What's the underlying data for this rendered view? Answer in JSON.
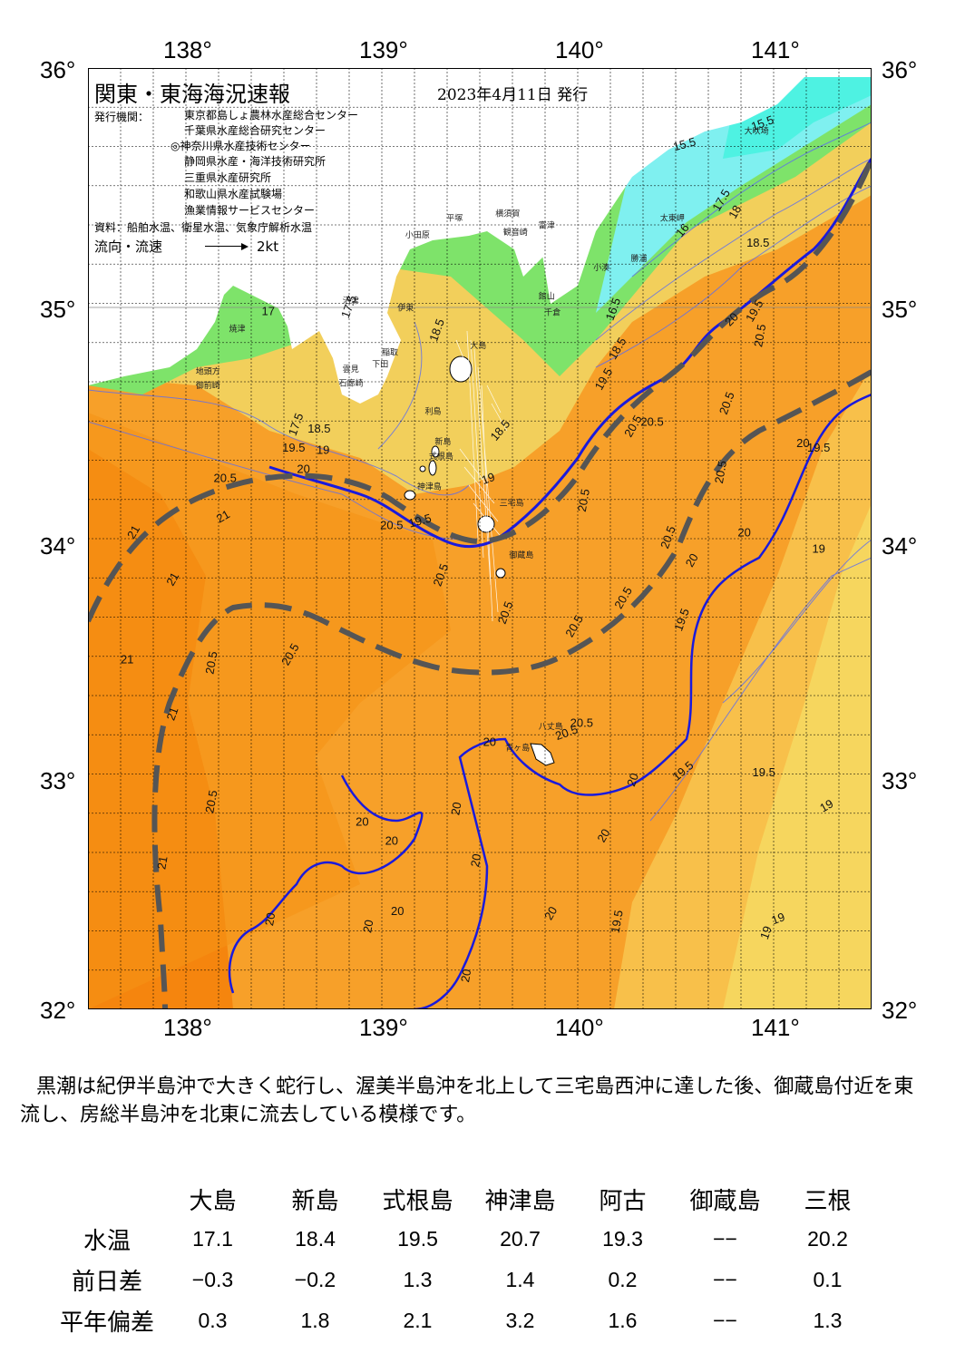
{
  "map": {
    "title": "関東・東海海況速報",
    "date": "2023年4月11日 発行",
    "publisher_label": "発行機関：",
    "publishers": [
      "東京都島しょ農林水産総合センター",
      "千葉県水産総合研究センター",
      "◎神奈川県水産技術センター",
      "静岡県水産・海洋技術研究所",
      "三重県水産研究所",
      "和歌山県水産試験場",
      "漁業情報サービスセンター"
    ],
    "source": "資料：船舶水温、衛星水温、気象庁解析水温",
    "flow_label": "流向・流速",
    "flow_scale": "2kt",
    "lon_labels": [
      "138°",
      "139°",
      "140°",
      "141°"
    ],
    "lat_labels": [
      "36°",
      "35°",
      "34°",
      "33°",
      "32°"
    ],
    "lon_range": [
      137.5,
      141.5
    ],
    "lat_range": [
      32,
      36
    ],
    "place_names": [
      {
        "name": "大吠埼",
        "lon": 140.85,
        "lat": 35.72
      },
      {
        "name": "太東岬",
        "lon": 140.42,
        "lat": 35.35
      },
      {
        "name": "勝浦",
        "lon": 140.27,
        "lat": 35.18
      },
      {
        "name": "小湊",
        "lon": 140.08,
        "lat": 35.14
      },
      {
        "name": "富津",
        "lon": 139.8,
        "lat": 35.32
      },
      {
        "name": "横須賀",
        "lon": 139.58,
        "lat": 35.37
      },
      {
        "name": "観音崎",
        "lon": 139.62,
        "lat": 35.29
      },
      {
        "name": "平塚",
        "lon": 139.33,
        "lat": 35.35
      },
      {
        "name": "小田原",
        "lon": 139.12,
        "lat": 35.28
      },
      {
        "name": "館山",
        "lon": 139.8,
        "lat": 35.02
      },
      {
        "name": "千倉",
        "lon": 139.83,
        "lat": 34.95
      },
      {
        "name": "伊東",
        "lon": 139.08,
        "lat": 34.97
      },
      {
        "name": "稲取",
        "lon": 139.0,
        "lat": 34.78
      },
      {
        "name": "下田",
        "lon": 138.95,
        "lat": 34.73
      },
      {
        "name": "雲見",
        "lon": 138.8,
        "lat": 34.71
      },
      {
        "name": "石廊崎",
        "lon": 138.78,
        "lat": 34.65
      },
      {
        "name": "沼津",
        "lon": 138.8,
        "lat": 35.0
      },
      {
        "name": "焼津",
        "lon": 138.22,
        "lat": 34.88
      },
      {
        "name": "地頭方",
        "lon": 138.05,
        "lat": 34.7
      },
      {
        "name": "御前崎",
        "lon": 138.05,
        "lat": 34.64
      },
      {
        "name": "利島",
        "lon": 139.22,
        "lat": 34.53
      },
      {
        "name": "新島",
        "lon": 139.27,
        "lat": 34.4
      },
      {
        "name": "式根島",
        "lon": 139.24,
        "lat": 34.34
      },
      {
        "name": "神津島",
        "lon": 139.18,
        "lat": 34.21
      },
      {
        "name": "三宅島",
        "lon": 139.6,
        "lat": 34.14
      },
      {
        "name": "御蔵島",
        "lon": 139.65,
        "lat": 33.92
      },
      {
        "name": "八丈島",
        "lon": 139.8,
        "lat": 33.19
      },
      {
        "name": "青ヶ島",
        "lon": 139.63,
        "lat": 33.1
      },
      {
        "name": "大島",
        "lon": 139.45,
        "lat": 34.81
      }
    ],
    "contour_labels": [
      {
        "text": "15.5",
        "lon": 140.95,
        "lat": 35.75,
        "rot": -20
      },
      {
        "text": "15.5",
        "lon": 140.55,
        "lat": 35.66,
        "rot": -15
      },
      {
        "text": "17.5",
        "lon": 140.75,
        "lat": 35.43,
        "rot": -60
      },
      {
        "text": "18",
        "lon": 140.82,
        "lat": 35.38,
        "rot": -60
      },
      {
        "text": "16",
        "lon": 140.55,
        "lat": 35.3,
        "rot": -50
      },
      {
        "text": "18.5",
        "lon": 140.92,
        "lat": 35.24,
        "rot": 0
      },
      {
        "text": "20",
        "lon": 140.8,
        "lat": 34.92,
        "rot": -45
      },
      {
        "text": "19.5",
        "lon": 140.92,
        "lat": 34.96,
        "rot": -60
      },
      {
        "text": "20.5",
        "lon": 140.95,
        "lat": 34.86,
        "rot": -80
      },
      {
        "text": "16.5",
        "lon": 140.2,
        "lat": 34.97,
        "rot": -70
      },
      {
        "text": "18.5",
        "lon": 140.22,
        "lat": 34.8,
        "rot": -60
      },
      {
        "text": "19.5",
        "lon": 140.15,
        "lat": 34.67,
        "rot": -60
      },
      {
        "text": "17.5",
        "lon": 138.85,
        "lat": 34.98,
        "rot": -70
      },
      {
        "text": "18.5",
        "lon": 139.3,
        "lat": 34.88,
        "rot": -70
      },
      {
        "text": "17",
        "lon": 138.42,
        "lat": 34.95,
        "rot": 0
      },
      {
        "text": "17.5",
        "lon": 138.58,
        "lat": 34.48,
        "rot": -70
      },
      {
        "text": "18.5",
        "lon": 138.68,
        "lat": 34.45,
        "rot": 0
      },
      {
        "text": "19.5",
        "lon": 138.55,
        "lat": 34.37,
        "rot": 0
      },
      {
        "text": "19",
        "lon": 138.7,
        "lat": 34.36,
        "rot": 0
      },
      {
        "text": "20.5",
        "lon": 138.2,
        "lat": 34.24,
        "rot": 0
      },
      {
        "text": "20",
        "lon": 138.6,
        "lat": 34.28,
        "rot": 0
      },
      {
        "text": "21",
        "lon": 138.2,
        "lat": 34.08,
        "rot": -30
      },
      {
        "text": "21",
        "lon": 137.75,
        "lat": 34.02,
        "rot": -60
      },
      {
        "text": "21",
        "lon": 137.95,
        "lat": 33.82,
        "rot": -60
      },
      {
        "text": "21",
        "lon": 137.7,
        "lat": 33.47,
        "rot": 0
      },
      {
        "text": "21",
        "lon": 137.95,
        "lat": 33.25,
        "rot": -70
      },
      {
        "text": "21",
        "lon": 137.9,
        "lat": 32.62,
        "rot": -80
      },
      {
        "text": "20.5",
        "lon": 138.15,
        "lat": 33.47,
        "rot": -80
      },
      {
        "text": "20.5",
        "lon": 138.55,
        "lat": 33.5,
        "rot": -60
      },
      {
        "text": "20.5",
        "lon": 138.15,
        "lat": 32.88,
        "rot": -80
      },
      {
        "text": "20.5",
        "lon": 139.05,
        "lat": 34.04,
        "rot": 0
      },
      {
        "text": "19.5",
        "lon": 139.2,
        "lat": 34.06,
        "rot": -15
      },
      {
        "text": "19",
        "lon": 139.55,
        "lat": 34.24,
        "rot": -20
      },
      {
        "text": "18.5",
        "lon": 139.62,
        "lat": 34.45,
        "rot": -50
      },
      {
        "text": "20.5",
        "lon": 139.32,
        "lat": 33.84,
        "rot": -70
      },
      {
        "text": "20.5",
        "lon": 139.65,
        "lat": 33.68,
        "rot": -70
      },
      {
        "text": "20.5",
        "lon": 140.05,
        "lat": 34.16,
        "rot": -80
      },
      {
        "text": "20.5",
        "lon": 140.3,
        "lat": 34.47,
        "rot": -60
      },
      {
        "text": "20.5",
        "lon": 140.38,
        "lat": 34.48,
        "rot": 0
      },
      {
        "text": "20.5",
        "lon": 140.78,
        "lat": 34.57,
        "rot": -70
      },
      {
        "text": "20.5",
        "lon": 140.75,
        "lat": 34.28,
        "rot": -80
      },
      {
        "text": "20.5",
        "lon": 140.48,
        "lat": 34.0,
        "rot": -70
      },
      {
        "text": "20.5",
        "lon": 140.25,
        "lat": 33.74,
        "rot": -60
      },
      {
        "text": "20.5",
        "lon": 140.0,
        "lat": 33.62,
        "rot": -60
      },
      {
        "text": "20",
        "lon": 140.6,
        "lat": 33.9,
        "rot": -60
      },
      {
        "text": "20",
        "lon": 140.85,
        "lat": 34.01,
        "rot": 0
      },
      {
        "text": "20",
        "lon": 141.15,
        "lat": 34.39,
        "rot": 0
      },
      {
        "text": "19.5",
        "lon": 141.23,
        "lat": 34.37,
        "rot": 0
      },
      {
        "text": "19",
        "lon": 141.23,
        "lat": 33.94,
        "rot": 0
      },
      {
        "text": "19.5",
        "lon": 140.55,
        "lat": 33.65,
        "rot": -70
      },
      {
        "text": "20.5",
        "lon": 140.02,
        "lat": 33.2,
        "rot": 0
      },
      {
        "text": "20.5",
        "lon": 139.95,
        "lat": 33.16,
        "rot": -20
      },
      {
        "text": "20",
        "lon": 139.55,
        "lat": 33.12,
        "rot": 0
      },
      {
        "text": "19.5",
        "lon": 140.55,
        "lat": 33.0,
        "rot": -40
      },
      {
        "text": "19.5",
        "lon": 140.95,
        "lat": 32.99,
        "rot": 0
      },
      {
        "text": "20",
        "lon": 140.3,
        "lat": 32.97,
        "rot": -70
      },
      {
        "text": "20",
        "lon": 140.15,
        "lat": 32.73,
        "rot": -60
      },
      {
        "text": "20",
        "lon": 139.4,
        "lat": 32.85,
        "rot": -80
      },
      {
        "text": "20",
        "lon": 139.5,
        "lat": 32.63,
        "rot": -80
      },
      {
        "text": "20",
        "lon": 138.9,
        "lat": 32.78,
        "rot": 0
      },
      {
        "text": "20",
        "lon": 139.05,
        "lat": 32.7,
        "rot": 0
      },
      {
        "text": "20",
        "lon": 139.08,
        "lat": 32.4,
        "rot": 0
      },
      {
        "text": "20",
        "lon": 138.95,
        "lat": 32.35,
        "rot": -80
      },
      {
        "text": "20",
        "lon": 138.45,
        "lat": 32.38,
        "rot": -80
      },
      {
        "text": "20",
        "lon": 139.88,
        "lat": 32.4,
        "rot": -60
      },
      {
        "text": "19.5",
        "lon": 140.22,
        "lat": 32.37,
        "rot": -80
      },
      {
        "text": "20",
        "lon": 139.45,
        "lat": 32.14,
        "rot": -80
      },
      {
        "text": "19",
        "lon": 141.28,
        "lat": 32.85,
        "rot": -30
      },
      {
        "text": "19",
        "lon": 141.03,
        "lat": 32.37,
        "rot": -20
      },
      {
        "text": "19",
        "lon": 140.98,
        "lat": 32.32,
        "rot": -70
      }
    ]
  },
  "description": "黒潮は紀伊半島沖で大きく蛇行し、渥美半島沖を北上して三宅島西沖に達した後、御蔵島付近を東流し、房総半島沖を北東に流去している模様です。",
  "table": {
    "stations": [
      "大島",
      "新島",
      "式根島",
      "神津島",
      "阿古",
      "御蔵島",
      "三根"
    ],
    "rows": [
      {
        "label": "水温",
        "values": [
          "17.1",
          "18.4",
          "19.5",
          "20.7",
          "19.3",
          "−−",
          "20.2"
        ]
      },
      {
        "label": "前日差",
        "values": [
          "−0.3",
          "−0.2",
          "1.3",
          "1.4",
          "0.2",
          "−−",
          "0.1"
        ]
      },
      {
        "label": "平年偏差",
        "values": [
          "0.3",
          "1.8",
          "2.1",
          "3.2",
          "1.6",
          "−−",
          "1.3"
        ]
      }
    ]
  },
  "colors": {
    "kuroshio": "#1a1adc",
    "dashed": "#555555",
    "land": "#ffffff",
    "orange_dark": "#f5850e",
    "orange": "#f7a029",
    "yellow": "#f5d35a",
    "green": "#7ee36a",
    "cyan": "#7ff0f0"
  }
}
